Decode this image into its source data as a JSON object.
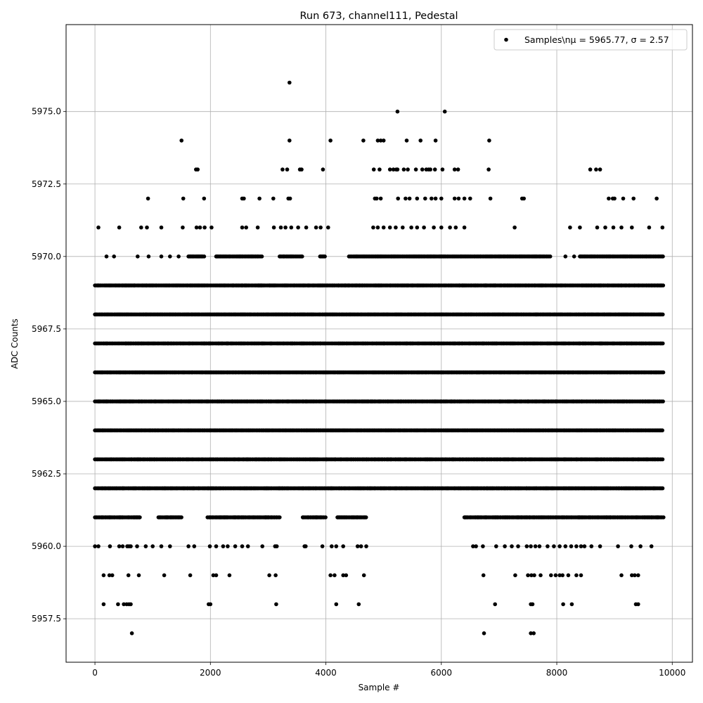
{
  "chart_data": {
    "type": "scatter",
    "title": "Run 673, channel111, Pedestal",
    "xlabel": "Sample #",
    "ylabel": "ADC Counts",
    "xlim": [
      -500,
      10350
    ],
    "ylim": [
      5956.0,
      5978.0
    ],
    "x_ticks": [
      0,
      2000,
      4000,
      6000,
      8000,
      10000
    ],
    "x_tick_labels": [
      "0",
      "2000",
      "4000",
      "6000",
      "8000",
      "10000"
    ],
    "y_ticks": [
      5957.5,
      5960.0,
      5962.5,
      5965.0,
      5967.5,
      5970.0,
      5972.5,
      5975.0
    ],
    "y_tick_labels": [
      "5957.5",
      "5960.0",
      "5962.5",
      "5965.0",
      "5967.5",
      "5970.0",
      "5972.5",
      "5975.0"
    ],
    "grid": true,
    "legend": {
      "placement": "top-right",
      "label": "Samples\\nμ = 5965.77, σ = 2.57"
    },
    "series": [
      {
        "name": "Samples\\nμ = 5965.77, σ = 2.57",
        "color": "#000000",
        "sample_x_range": [
          0,
          9850
        ],
        "level_runs": [
          {
            "y": 5969,
            "segments": [
              [
                0,
                9850
              ]
            ]
          },
          {
            "y": 5968,
            "segments": [
              [
                0,
                9850
              ]
            ]
          },
          {
            "y": 5967,
            "segments": [
              [
                0,
                9850
              ]
            ]
          },
          {
            "y": 5966,
            "segments": [
              [
                0,
                9850
              ]
            ]
          },
          {
            "y": 5965,
            "segments": [
              [
                0,
                9850
              ]
            ]
          },
          {
            "y": 5964,
            "segments": [
              [
                0,
                9850
              ]
            ]
          },
          {
            "y": 5963,
            "segments": [
              [
                0,
                9850
              ]
            ]
          },
          {
            "y": 5962,
            "segments": [
              [
                0,
                9850
              ]
            ]
          },
          {
            "y": 5970,
            "segments": [
              [
                1620,
                1900
              ],
              [
                2100,
                2900
              ],
              [
                3200,
                3600
              ],
              [
                3900,
                4000
              ],
              [
                4400,
                7900
              ],
              [
                8400,
                9850
              ]
            ]
          },
          {
            "y": 5961,
            "segments": [
              [
                0,
                800
              ],
              [
                1100,
                1500
              ],
              [
                1950,
                3200
              ],
              [
                3600,
                4000
              ],
              [
                4200,
                4700
              ],
              [
                6400,
                9850
              ]
            ]
          }
        ],
        "points": [
          [
            60,
            5971
          ],
          [
            420,
            5971
          ],
          [
            800,
            5971
          ],
          [
            900,
            5971
          ],
          [
            1150,
            5971
          ],
          [
            1520,
            5971
          ],
          [
            1760,
            5971
          ],
          [
            1820,
            5971
          ],
          [
            1900,
            5971
          ],
          [
            2020,
            5971
          ],
          [
            2550,
            5971
          ],
          [
            2620,
            5971
          ],
          [
            2820,
            5971
          ],
          [
            3100,
            5971
          ],
          [
            3220,
            5971
          ],
          [
            3300,
            5971
          ],
          [
            3400,
            5971
          ],
          [
            3520,
            5971
          ],
          [
            3660,
            5971
          ],
          [
            3830,
            5971
          ],
          [
            3910,
            5971
          ],
          [
            4040,
            5971
          ],
          [
            4820,
            5971
          ],
          [
            4900,
            5971
          ],
          [
            5000,
            5971
          ],
          [
            5110,
            5971
          ],
          [
            5210,
            5971
          ],
          [
            5330,
            5971
          ],
          [
            5480,
            5971
          ],
          [
            5580,
            5971
          ],
          [
            5700,
            5971
          ],
          [
            5870,
            5971
          ],
          [
            6000,
            5971
          ],
          [
            6150,
            5971
          ],
          [
            6250,
            5971
          ],
          [
            6400,
            5971
          ],
          [
            7270,
            5971
          ],
          [
            8230,
            5971
          ],
          [
            8400,
            5971
          ],
          [
            8700,
            5971
          ],
          [
            8840,
            5971
          ],
          [
            8980,
            5971
          ],
          [
            9120,
            5971
          ],
          [
            9300,
            5971
          ],
          [
            9600,
            5971
          ],
          [
            9830,
            5971
          ],
          [
            200,
            5970
          ],
          [
            330,
            5970
          ],
          [
            740,
            5970
          ],
          [
            930,
            5970
          ],
          [
            1150,
            5970
          ],
          [
            1300,
            5970
          ],
          [
            1450,
            5970
          ],
          [
            8150,
            5970
          ],
          [
            8300,
            5970
          ],
          [
            920,
            5972
          ],
          [
            1530,
            5972
          ],
          [
            1890,
            5972
          ],
          [
            2550,
            5972
          ],
          [
            2580,
            5972
          ],
          [
            2850,
            5972
          ],
          [
            3090,
            5972
          ],
          [
            3350,
            5972
          ],
          [
            3380,
            5972
          ],
          [
            4850,
            5972
          ],
          [
            4880,
            5972
          ],
          [
            4950,
            5972
          ],
          [
            5250,
            5972
          ],
          [
            5380,
            5972
          ],
          [
            5450,
            5972
          ],
          [
            5580,
            5972
          ],
          [
            5720,
            5972
          ],
          [
            5830,
            5972
          ],
          [
            5900,
            5972
          ],
          [
            6000,
            5972
          ],
          [
            6230,
            5972
          ],
          [
            6300,
            5972
          ],
          [
            6400,
            5972
          ],
          [
            6500,
            5972
          ],
          [
            6850,
            5972
          ],
          [
            7400,
            5972
          ],
          [
            7430,
            5972
          ],
          [
            8900,
            5972
          ],
          [
            8970,
            5972
          ],
          [
            9000,
            5972
          ],
          [
            9150,
            5972
          ],
          [
            9330,
            5972
          ],
          [
            9730,
            5972
          ],
          [
            1750,
            5973
          ],
          [
            1780,
            5973
          ],
          [
            3250,
            5973
          ],
          [
            3330,
            5973
          ],
          [
            3550,
            5973
          ],
          [
            3580,
            5973
          ],
          [
            3950,
            5973
          ],
          [
            4830,
            5973
          ],
          [
            4930,
            5973
          ],
          [
            5110,
            5973
          ],
          [
            5170,
            5973
          ],
          [
            5220,
            5973
          ],
          [
            5240,
            5973
          ],
          [
            5350,
            5973
          ],
          [
            5420,
            5973
          ],
          [
            5560,
            5973
          ],
          [
            5670,
            5973
          ],
          [
            5740,
            5973
          ],
          [
            5780,
            5973
          ],
          [
            5810,
            5973
          ],
          [
            5890,
            5973
          ],
          [
            6020,
            5973
          ],
          [
            6230,
            5973
          ],
          [
            6290,
            5973
          ],
          [
            6820,
            5973
          ],
          [
            8580,
            5973
          ],
          [
            8680,
            5973
          ],
          [
            8750,
            5973
          ],
          [
            1500,
            5974
          ],
          [
            3370,
            5974
          ],
          [
            4080,
            5974
          ],
          [
            4650,
            5974
          ],
          [
            4900,
            5974
          ],
          [
            4950,
            5974
          ],
          [
            5000,
            5974
          ],
          [
            5400,
            5974
          ],
          [
            5640,
            5974
          ],
          [
            5900,
            5974
          ],
          [
            6830,
            5974
          ],
          [
            5240,
            5975
          ],
          [
            6060,
            5975
          ],
          [
            3370,
            5976
          ],
          [
            0,
            5960
          ],
          [
            60,
            5960
          ],
          [
            260,
            5960
          ],
          [
            420,
            5960
          ],
          [
            480,
            5960
          ],
          [
            560,
            5960
          ],
          [
            590,
            5960
          ],
          [
            620,
            5960
          ],
          [
            730,
            5960
          ],
          [
            880,
            5960
          ],
          [
            1000,
            5960
          ],
          [
            1150,
            5960
          ],
          [
            1300,
            5960
          ],
          [
            1620,
            5960
          ],
          [
            1720,
            5960
          ],
          [
            1990,
            5960
          ],
          [
            2100,
            5960
          ],
          [
            2220,
            5960
          ],
          [
            2300,
            5960
          ],
          [
            2430,
            5960
          ],
          [
            2550,
            5960
          ],
          [
            2650,
            5960
          ],
          [
            2900,
            5960
          ],
          [
            3120,
            5960
          ],
          [
            3150,
            5960
          ],
          [
            3630,
            5960
          ],
          [
            3650,
            5960
          ],
          [
            3940,
            5960
          ],
          [
            4100,
            5960
          ],
          [
            4180,
            5960
          ],
          [
            4300,
            5960
          ],
          [
            4550,
            5960
          ],
          [
            4610,
            5960
          ],
          [
            4700,
            5960
          ],
          [
            6550,
            5960
          ],
          [
            6600,
            5960
          ],
          [
            6720,
            5960
          ],
          [
            6950,
            5960
          ],
          [
            7100,
            5960
          ],
          [
            7220,
            5960
          ],
          [
            7330,
            5960
          ],
          [
            7480,
            5960
          ],
          [
            7550,
            5960
          ],
          [
            7630,
            5960
          ],
          [
            7700,
            5960
          ],
          [
            7840,
            5960
          ],
          [
            7950,
            5960
          ],
          [
            8050,
            5960
          ],
          [
            8150,
            5960
          ],
          [
            8250,
            5960
          ],
          [
            8340,
            5960
          ],
          [
            8420,
            5960
          ],
          [
            8480,
            5960
          ],
          [
            8600,
            5960
          ],
          [
            8750,
            5960
          ],
          [
            9060,
            5960
          ],
          [
            9290,
            5960
          ],
          [
            9450,
            5960
          ],
          [
            9640,
            5960
          ],
          [
            150,
            5959
          ],
          [
            250,
            5959
          ],
          [
            300,
            5959
          ],
          [
            580,
            5959
          ],
          [
            760,
            5959
          ],
          [
            1200,
            5959
          ],
          [
            1650,
            5959
          ],
          [
            2050,
            5959
          ],
          [
            2100,
            5959
          ],
          [
            2330,
            5959
          ],
          [
            3020,
            5959
          ],
          [
            3130,
            5959
          ],
          [
            4080,
            5959
          ],
          [
            4150,
            5959
          ],
          [
            4300,
            5959
          ],
          [
            4350,
            5959
          ],
          [
            4660,
            5959
          ],
          [
            6730,
            5959
          ],
          [
            7280,
            5959
          ],
          [
            7500,
            5959
          ],
          [
            7560,
            5959
          ],
          [
            7610,
            5959
          ],
          [
            7720,
            5959
          ],
          [
            7900,
            5959
          ],
          [
            7980,
            5959
          ],
          [
            8050,
            5959
          ],
          [
            8100,
            5959
          ],
          [
            8200,
            5959
          ],
          [
            8340,
            5959
          ],
          [
            8420,
            5959
          ],
          [
            9120,
            5959
          ],
          [
            9300,
            5959
          ],
          [
            9350,
            5959
          ],
          [
            9410,
            5959
          ],
          [
            150,
            5958
          ],
          [
            400,
            5958
          ],
          [
            500,
            5958
          ],
          [
            550,
            5958
          ],
          [
            590,
            5958
          ],
          [
            620,
            5958
          ],
          [
            1970,
            5958
          ],
          [
            2000,
            5958
          ],
          [
            3140,
            5958
          ],
          [
            4180,
            5958
          ],
          [
            4570,
            5958
          ],
          [
            6930,
            5958
          ],
          [
            7550,
            5958
          ],
          [
            7580,
            5958
          ],
          [
            8110,
            5958
          ],
          [
            8260,
            5958
          ],
          [
            9370,
            5958
          ],
          [
            9410,
            5958
          ],
          [
            640,
            5957
          ],
          [
            6740,
            5957
          ],
          [
            7550,
            5957
          ],
          [
            7600,
            5957
          ]
        ]
      }
    ]
  }
}
